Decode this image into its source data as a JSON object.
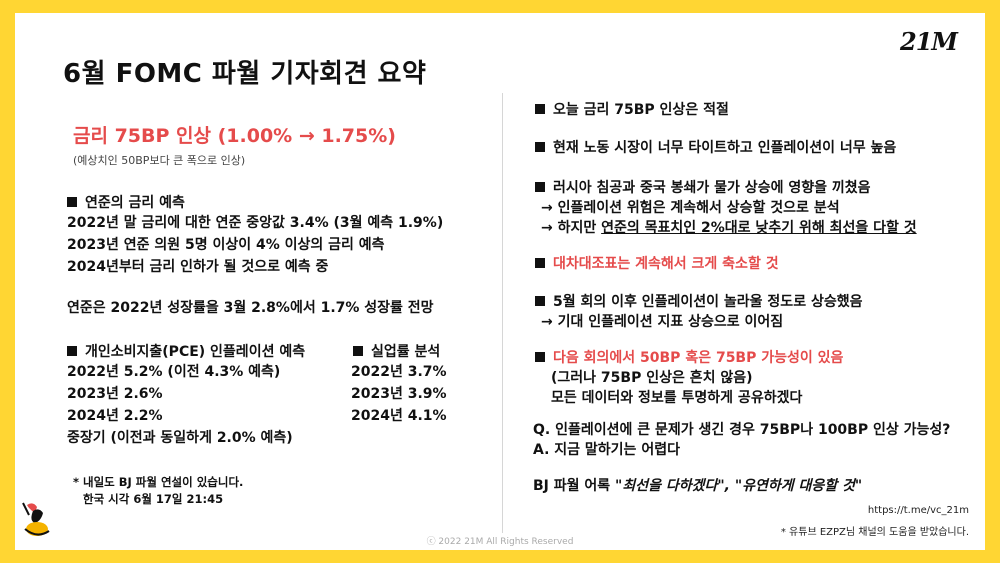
{
  "logo": "21M",
  "title": "6월 FOMC 파월 기자회견 요약",
  "headline": "금리 75BP 인상 (1.00% → 1.75%)",
  "headline_sub": "(예상치인 50BP보다 큰 폭으로 인상)",
  "fed_forecast": {
    "heading": "연준의 금리 예측",
    "lines": [
      "2022년 말 금리에 대한 연준 중앙값 3.4% (3월 예측 1.9%)",
      "2023년 연준 의원 5명 이상이 4% 이상의 금리 예측",
      "2024년부터 금리 인하가 될 것으로 예측 중"
    ]
  },
  "growth_line": "연준은 2022년 성장률을 3월 2.8%에서 1.7% 성장률 전망",
  "pce": {
    "heading": "개인소비지출(PCE) 인플레이션 예측",
    "lines": [
      "2022년 5.2% (이전 4.3% 예측)",
      "2023년 2.6%",
      "2024년 2.2%",
      "중장기 (이전과 동일하게 2.0% 예측)"
    ]
  },
  "unemployment": {
    "heading": "실업률 분석",
    "lines": [
      "2022년 3.7%",
      "2023년 3.9%",
      "2024년 4.1%"
    ]
  },
  "footnote": {
    "line1": "* 내일도 BJ 파월 연설이 있습니다.",
    "line2": "한국 시각 6월 17일 21:45"
  },
  "right": {
    "p1": "오늘 금리 75BP 인상은 적절",
    "p2": "현재 노동 시장이 너무 타이트하고 인플레이션이 너무 높음",
    "p3": {
      "main": "러시아 침공과 중국 봉쇄가 물가 상승에 영향을 끼쳤음",
      "sub1": "→ 인플레이션 위험은 계속해서 상승할 것으로 분석",
      "sub2_pre": "→ 하지만 ",
      "sub2_underlined": "연준의 목표치인 2%대로 낮추기 위해 최선을 다할 것"
    },
    "p4": "대차대조표는 계속해서 크게 축소할 것",
    "p5": {
      "main": "5월 회의 이후 인플레이션이 놀라울 정도로 상승했음",
      "sub": "→ 기대 인플레이션 지표 상승으로 이어짐"
    },
    "p6": {
      "main": "다음 회의에서 50BP 혹은 75BP 가능성이 있음",
      "sub1": "(그러나 75BP 인상은 흔치 않음)",
      "sub2": "모든 데이터와 정보를 투명하게 공유하겠다"
    },
    "q": "Q. 인플레이션에 큰 문제가 생긴 경우 75BP나 100BP 인상 가능성?",
    "a": "A. 지금 말하기는 어렵다",
    "quote_prefix": "BJ 파월 어록 ",
    "quote_text": "\"최선을 다하겠다\", \"유연하게 대응할 것\""
  },
  "link": "https://t.me/vc_21m",
  "credit": "* 유튜브 EZPZ님 채널의 도움을 받았습니다.",
  "copyright": "ⓒ 2022 21M All Rights Reserved",
  "colors": {
    "frame": "#FFD633",
    "accent_red": "#E54B4B",
    "text": "#111111"
  }
}
